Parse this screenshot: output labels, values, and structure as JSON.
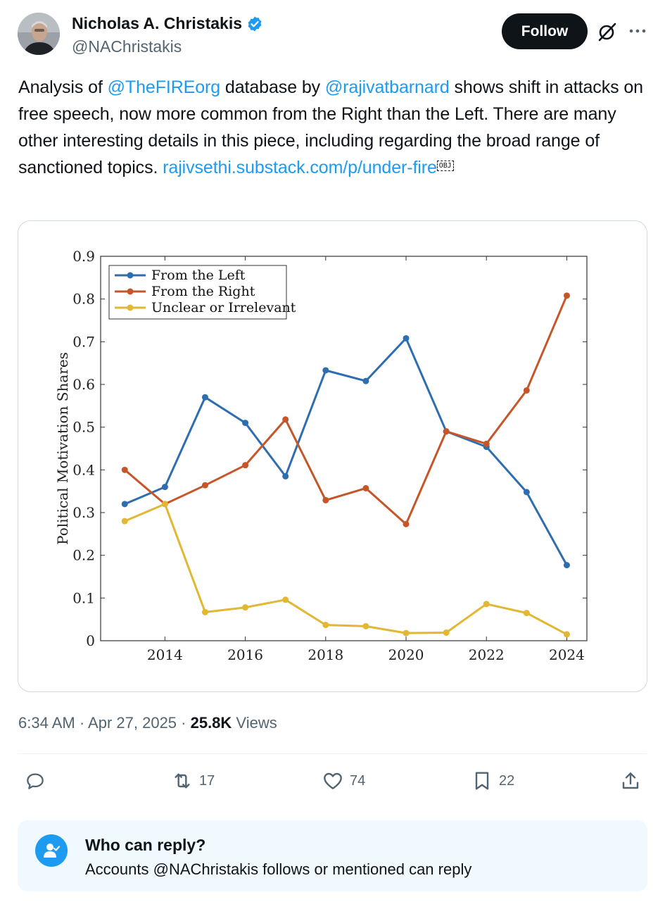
{
  "author": {
    "name": "Nicholas A. Christakis",
    "handle": "@NAChristakis",
    "verified": true,
    "verified_color": "#1d9bf0"
  },
  "follow_label": "Follow",
  "tweet": {
    "t1": "Analysis of ",
    "m1": "@TheFIREorg",
    "t2": " database by ",
    "m2": "@rajivatbarnard",
    "t3": " shows shift in attacks on free speech, now more common from the Right than the Left. There are many other interesting details in this piece, including regarding the broad range of sanctioned topics. ",
    "link": "rajivsethi.substack.com/p/under-fire",
    "obj": "OBJ"
  },
  "chart_data": {
    "type": "line",
    "ylabel": "Political Motivation Shares",
    "xlabel": "",
    "x": [
      2013,
      2014,
      2015,
      2016,
      2017,
      2018,
      2019,
      2020,
      2021,
      2022,
      2023,
      2024
    ],
    "xticks": [
      "2014",
      "2016",
      "2018",
      "2020",
      "2022",
      "2024"
    ],
    "xtick_values": [
      2014,
      2016,
      2018,
      2020,
      2022,
      2024
    ],
    "yticks": [
      "0",
      "0.1",
      "0.2",
      "0.3",
      "0.4",
      "0.5",
      "0.6",
      "0.7",
      "0.8",
      "0.9"
    ],
    "ylim": [
      0,
      0.9
    ],
    "xlim": [
      2012.4,
      2024.5
    ],
    "legend_position": "top-left",
    "series": [
      {
        "name": "From the Left",
        "color": "#2e6eb0",
        "values": [
          0.32,
          0.36,
          0.57,
          0.51,
          0.385,
          0.633,
          0.608,
          0.708,
          0.49,
          0.454,
          0.348,
          0.177
        ]
      },
      {
        "name": "From the Right",
        "color": "#c6562a",
        "values": [
          0.4,
          0.32,
          0.364,
          0.411,
          0.518,
          0.329,
          0.357,
          0.273,
          0.49,
          0.461,
          0.586,
          0.808
        ]
      },
      {
        "name": "Unclear or Irrelevant",
        "color": "#e2b733",
        "values": [
          0.28,
          0.32,
          0.067,
          0.078,
          0.096,
          0.037,
          0.034,
          0.018,
          0.019,
          0.086,
          0.065,
          0.015
        ]
      }
    ]
  },
  "meta": {
    "time": "6:34 AM · Apr 27, 2025 · ",
    "views_count": "25.8K",
    "views_label": " Views"
  },
  "actions": {
    "retweets": "17",
    "likes": "74",
    "bookmarks": "22"
  },
  "reply_info": {
    "title": "Who can reply?",
    "subtitle": "Accounts @NAChristakis follows or mentioned can reply"
  }
}
